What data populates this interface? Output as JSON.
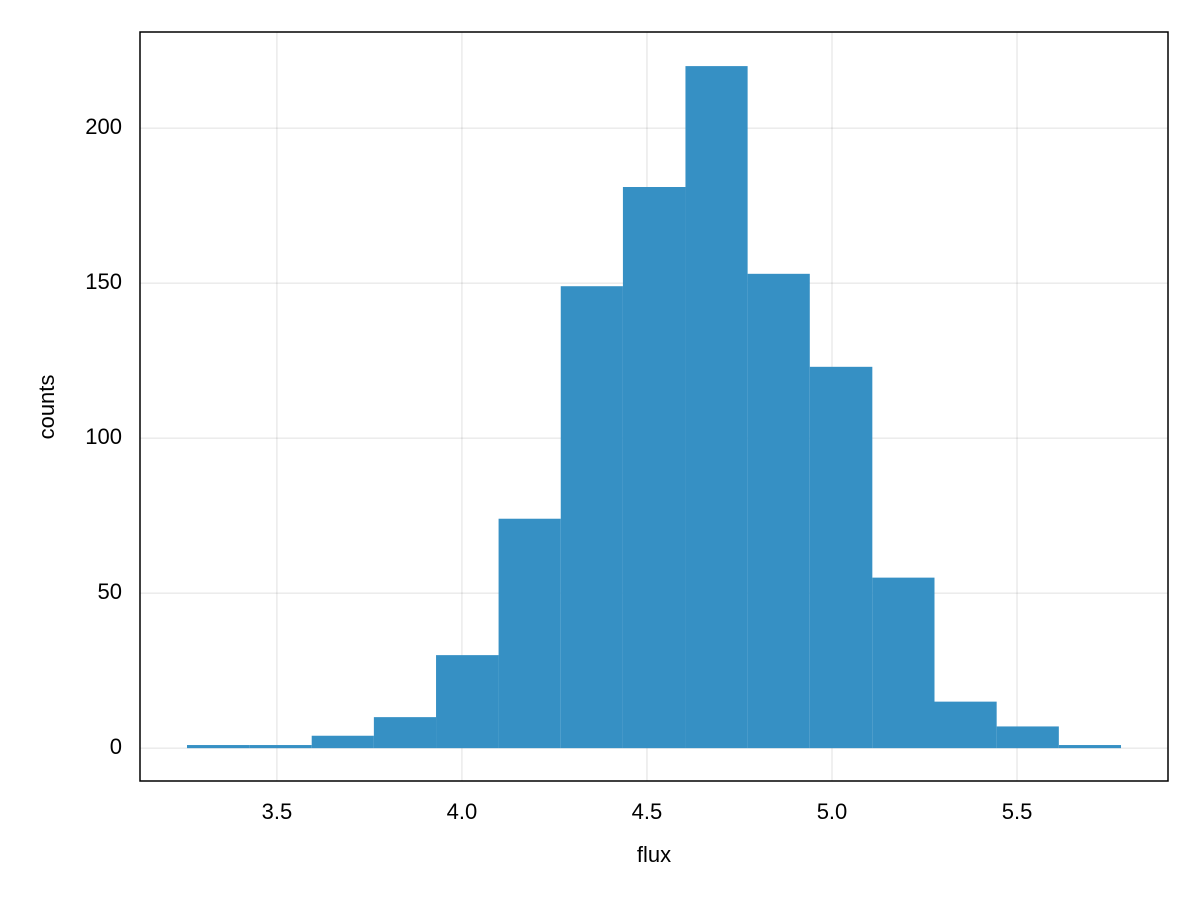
{
  "chart_data": {
    "type": "histogram",
    "xlabel": "flux",
    "ylabel": "counts",
    "bins": [
      3.257,
      3.425,
      3.594,
      3.762,
      3.93,
      4.099,
      4.267,
      4.435,
      4.604,
      4.772,
      4.94,
      5.109,
      5.277,
      5.445,
      5.613,
      5.781
    ],
    "values": [
      1,
      1,
      4,
      10,
      30,
      74,
      149,
      181,
      220,
      153,
      123,
      55,
      15,
      7,
      1
    ],
    "color": "#3690c4",
    "xlim": [
      3.13,
      5.908
    ],
    "ylim": [
      -10.6,
      231
    ],
    "xticks": [
      3.5,
      {
        "value": 4,
        "label": "4.0"
      },
      4.5,
      {
        "value": 5,
        "label": "5.0"
      },
      5.5
    ],
    "yticks": [
      0,
      50,
      100,
      150,
      200
    ],
    "grid": true
  }
}
